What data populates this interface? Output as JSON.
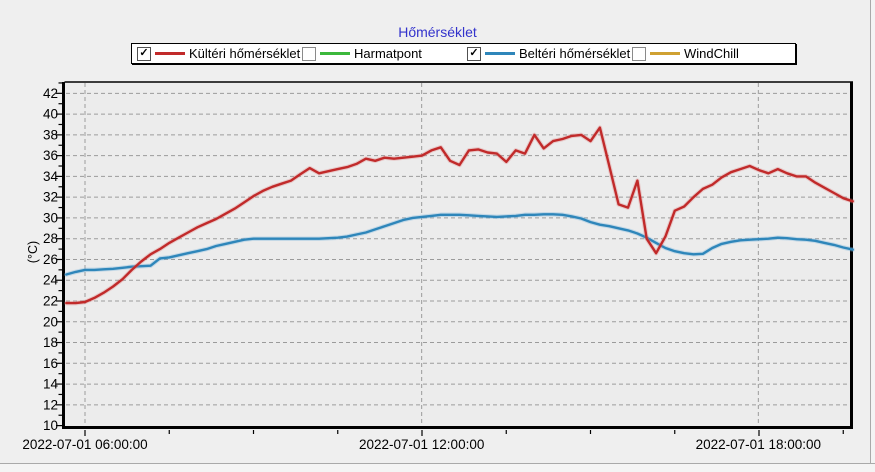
{
  "panel": {
    "background": "#efefef",
    "plot_background": "#ececec"
  },
  "title": "Hőmérséklet",
  "title_color": "#3333cc",
  "legend": {
    "items": [
      {
        "label": "Kültéri hőmérséklet",
        "checked": true,
        "color": "#c12a2a"
      },
      {
        "label": "Harmatpont",
        "checked": false,
        "color": "#3cb83c"
      },
      {
        "label": "Beltéri hőmérséklet",
        "checked": true,
        "color": "#2e86ba"
      },
      {
        "label": "WindChill",
        "checked": false,
        "color": "#cfa132"
      }
    ]
  },
  "chart_data": {
    "type": "line",
    "title": "Hőmérséklet",
    "xlabel": "",
    "ylabel": "(°C)",
    "ylim": [
      10,
      42
    ],
    "y_tick_step": 2,
    "grid": true,
    "grid_color": "#9b9b9b",
    "axis_color": "#000000",
    "x_tick_labels": [
      "2022-07-01 06:00:00",
      "2022-07-01 12:00:00",
      "2022-07-01 18:00:00"
    ],
    "x_start_time": "2022-07-01 05:40",
    "x_end_time": "2022-07-01 19:40",
    "x_step_minutes": 10,
    "legend_position": "top",
    "series": [
      {
        "name": "Kültéri hőmérséklet",
        "color": "#c12a2a",
        "visible": true,
        "values": [
          21.8,
          21.8,
          21.9,
          22.3,
          22.8,
          23.4,
          24.1,
          25.0,
          25.8,
          26.5,
          27.0,
          27.6,
          28.1,
          28.6,
          29.1,
          29.5,
          29.9,
          30.4,
          30.9,
          31.5,
          32.1,
          32.6,
          33.0,
          33.3,
          33.6,
          34.2,
          34.8,
          34.3,
          34.5,
          34.7,
          34.9,
          35.2,
          35.7,
          35.5,
          35.8,
          35.7,
          35.8,
          35.9,
          36.0,
          36.5,
          36.8,
          35.5,
          35.1,
          36.5,
          36.6,
          36.3,
          36.2,
          35.4,
          36.5,
          36.2,
          38.0,
          36.7,
          37.4,
          37.6,
          37.9,
          38.0,
          37.4,
          38.7,
          35.0,
          31.3,
          31.0,
          33.6,
          28.0,
          26.6,
          28.2,
          30.7,
          31.1,
          32.0,
          32.8,
          33.2,
          33.9,
          34.4,
          34.7,
          35.0,
          34.6,
          34.3,
          34.7,
          34.3,
          34.0,
          34.0,
          33.4,
          32.9,
          32.4,
          31.9,
          31.6
        ]
      },
      {
        "name": "Harmatpont",
        "color": "#3cb83c",
        "visible": false,
        "values": []
      },
      {
        "name": "Beltéri hőmérséklet",
        "color": "#2e86ba",
        "visible": true,
        "values": [
          24.55,
          24.8,
          25.0,
          25.0,
          25.05,
          25.1,
          25.2,
          25.3,
          25.35,
          25.4,
          26.1,
          26.2,
          26.4,
          26.6,
          26.8,
          27.0,
          27.3,
          27.5,
          27.7,
          27.9,
          28.0,
          28.0,
          28.0,
          28.0,
          28.0,
          28.0,
          28.0,
          28.0,
          28.05,
          28.1,
          28.2,
          28.4,
          28.6,
          28.9,
          29.2,
          29.5,
          29.8,
          30.0,
          30.1,
          30.2,
          30.3,
          30.3,
          30.3,
          30.25,
          30.2,
          30.15,
          30.1,
          30.15,
          30.2,
          30.3,
          30.3,
          30.35,
          30.35,
          30.3,
          30.15,
          29.95,
          29.6,
          29.35,
          29.2,
          29.0,
          28.8,
          28.5,
          28.1,
          27.6,
          27.1,
          26.8,
          26.6,
          26.5,
          26.55,
          27.1,
          27.5,
          27.7,
          27.85,
          27.9,
          27.95,
          28.0,
          28.1,
          28.05,
          27.95,
          27.9,
          27.8,
          27.6,
          27.4,
          27.15,
          26.95
        ]
      },
      {
        "name": "WindChill",
        "color": "#cfa132",
        "visible": false,
        "values": []
      }
    ]
  }
}
